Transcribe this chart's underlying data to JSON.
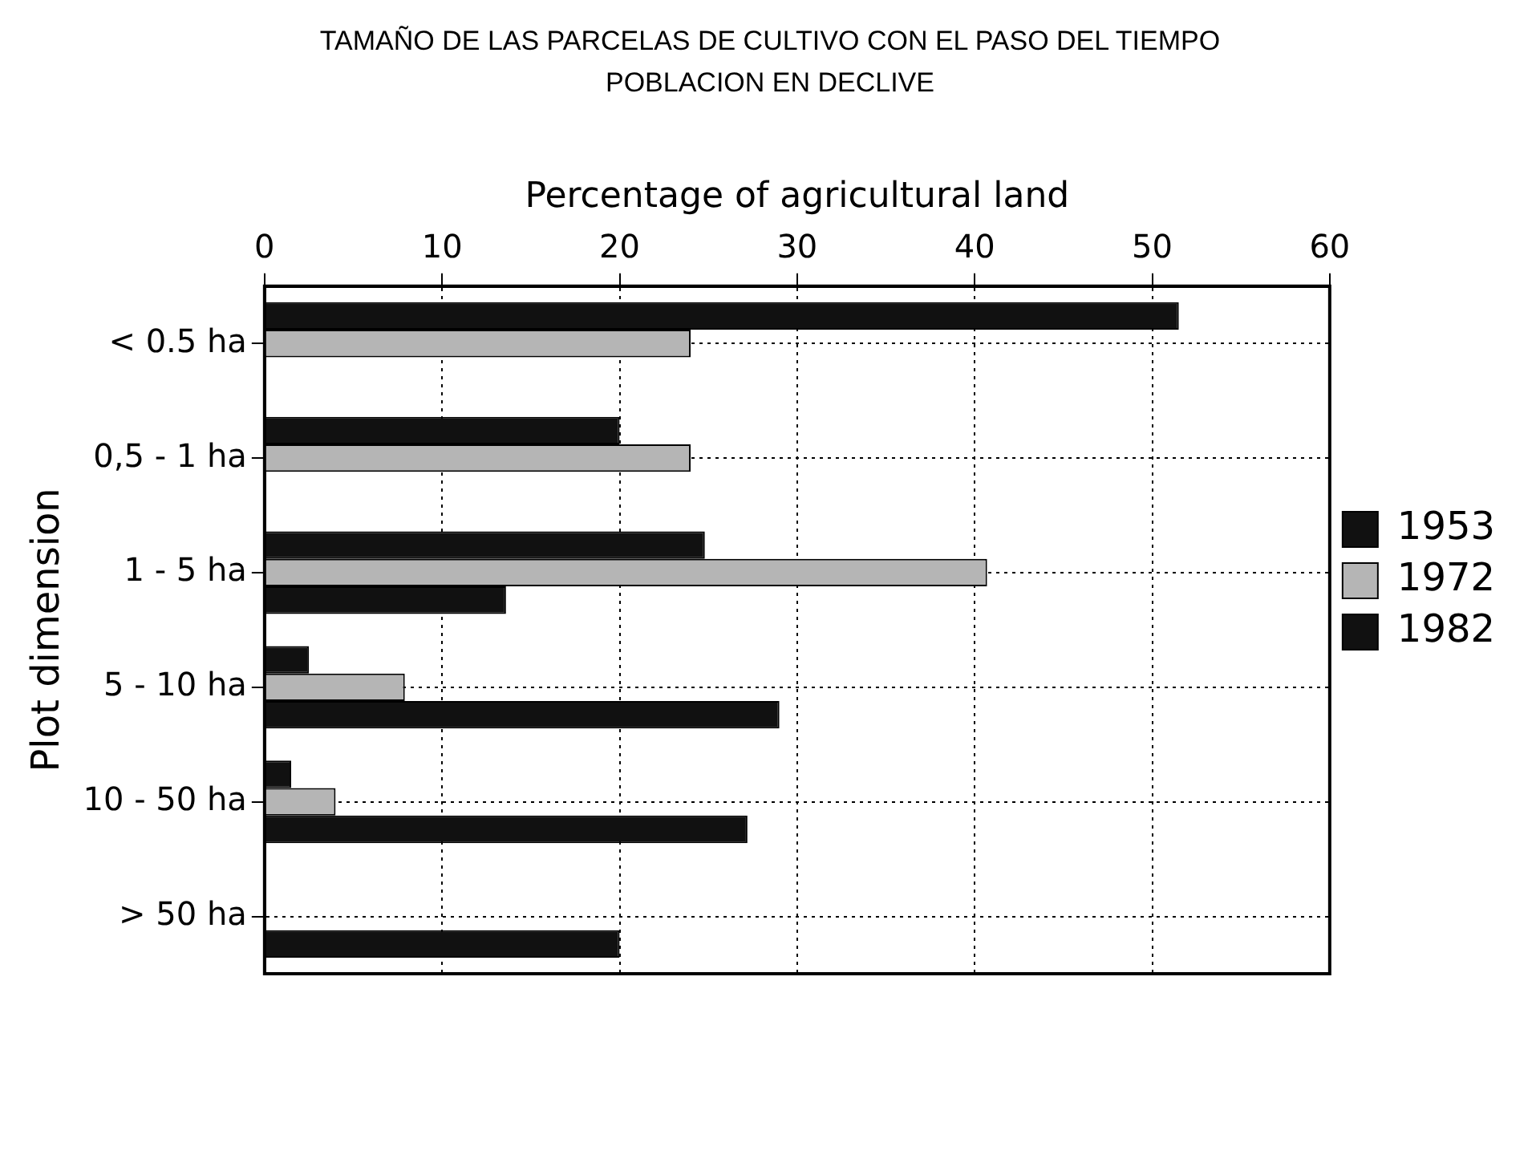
{
  "chart_data": {
    "type": "bar",
    "orientation": "horizontal",
    "title": "TAMAÑO DE LAS PARCELAS DE CULTIVO CON EL PASO DEL TIEMPO",
    "subtitle": "POBLACION EN DECLIVE",
    "xlabel": "Percentage of agricultural land",
    "ylabel": "Plot dimension",
    "categories": [
      "< 0.5 ha",
      "0,5 - 1 ha",
      "1 - 5 ha",
      "5 - 10 ha",
      "10 - 50 ha",
      "> 50 ha"
    ],
    "series": [
      {
        "name": "1953",
        "color": "#111111",
        "values": [
          51.5,
          20,
          24.8,
          2.5,
          1.5,
          null
        ]
      },
      {
        "name": "1972",
        "color": "#b5b5b5",
        "values": [
          24,
          24,
          40.7,
          7.9,
          4,
          null
        ]
      },
      {
        "name": "1982",
        "color": "#111111",
        "values": [
          null,
          null,
          13.6,
          29,
          27.2,
          20
        ]
      }
    ],
    "xlim": [
      0,
      60
    ],
    "xticks": [
      0,
      10,
      20,
      30,
      40,
      50,
      60
    ],
    "grid": true,
    "legend": "right"
  }
}
